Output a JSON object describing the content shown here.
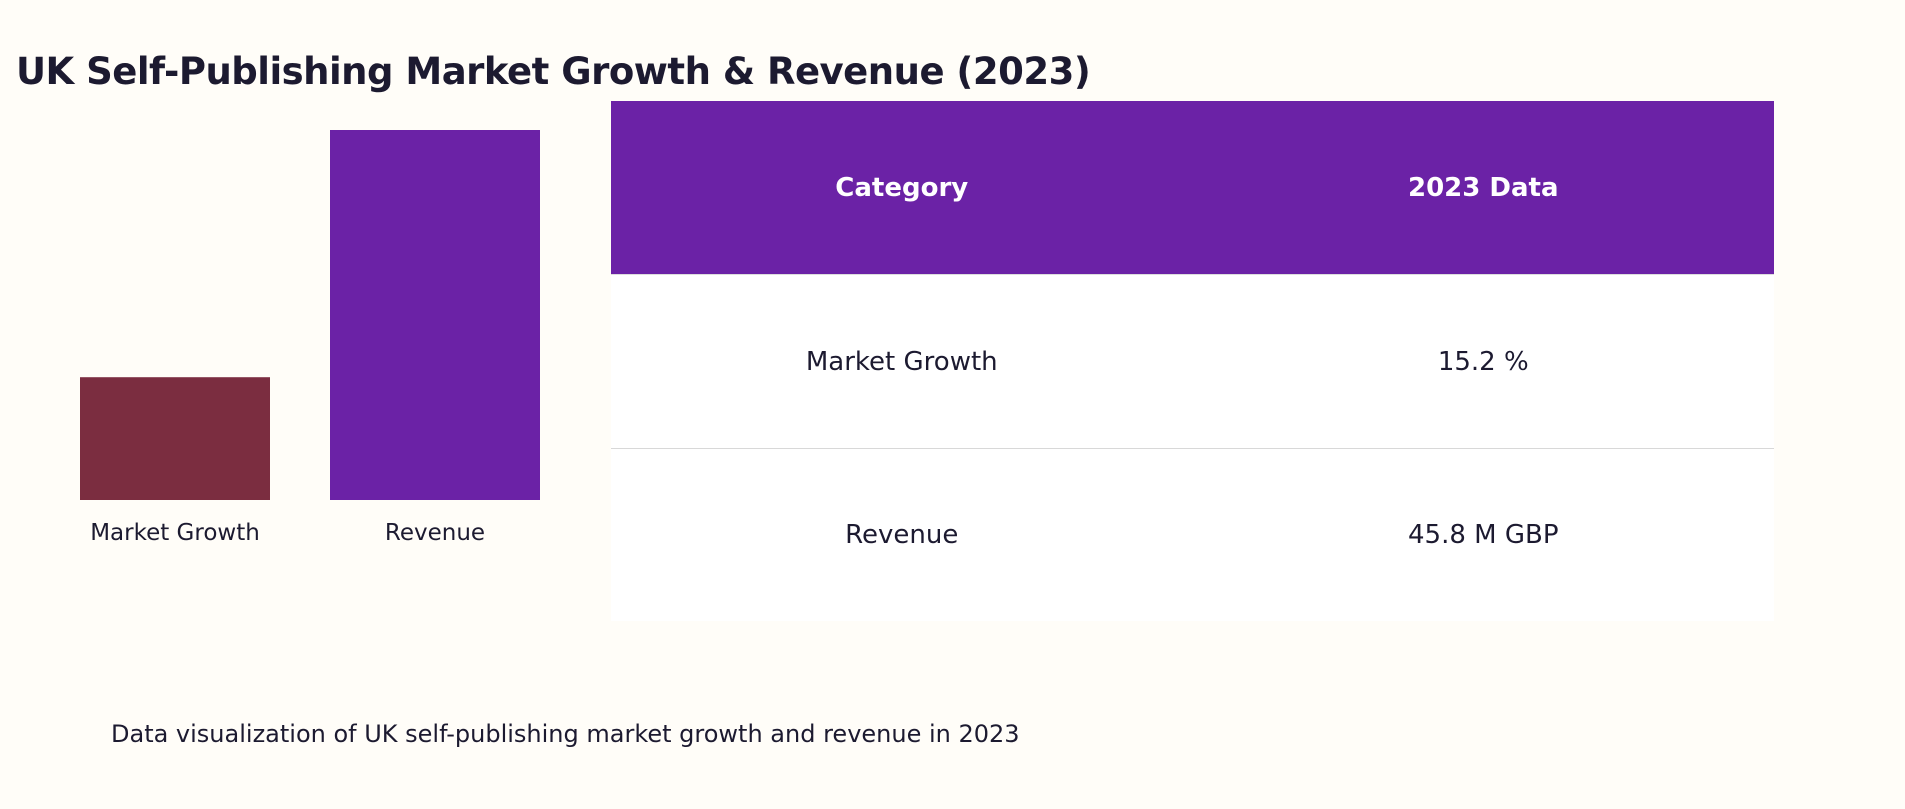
{
  "title": "UK Self-Publishing Market Growth & Revenue (2023)",
  "caption": "Data visualization of UK self-publishing market growth and revenue in 2023",
  "table": {
    "headers": [
      "Category",
      "2023 Data"
    ],
    "rows": [
      [
        "Market Growth",
        "15.2 %"
      ],
      [
        "Revenue",
        "45.8 M GBP"
      ]
    ]
  },
  "chart_data": {
    "type": "bar",
    "categories": [
      "Market Growth",
      "Revenue"
    ],
    "values": [
      15.2,
      45.8
    ],
    "units": [
      "%",
      "M GBP"
    ],
    "colors": [
      "#7b2d40",
      "#6b22a6"
    ],
    "title": "",
    "xlabel": "",
    "ylabel": ""
  },
  "colors": {
    "header": "#6b22a6",
    "background": "#fffdf8"
  }
}
